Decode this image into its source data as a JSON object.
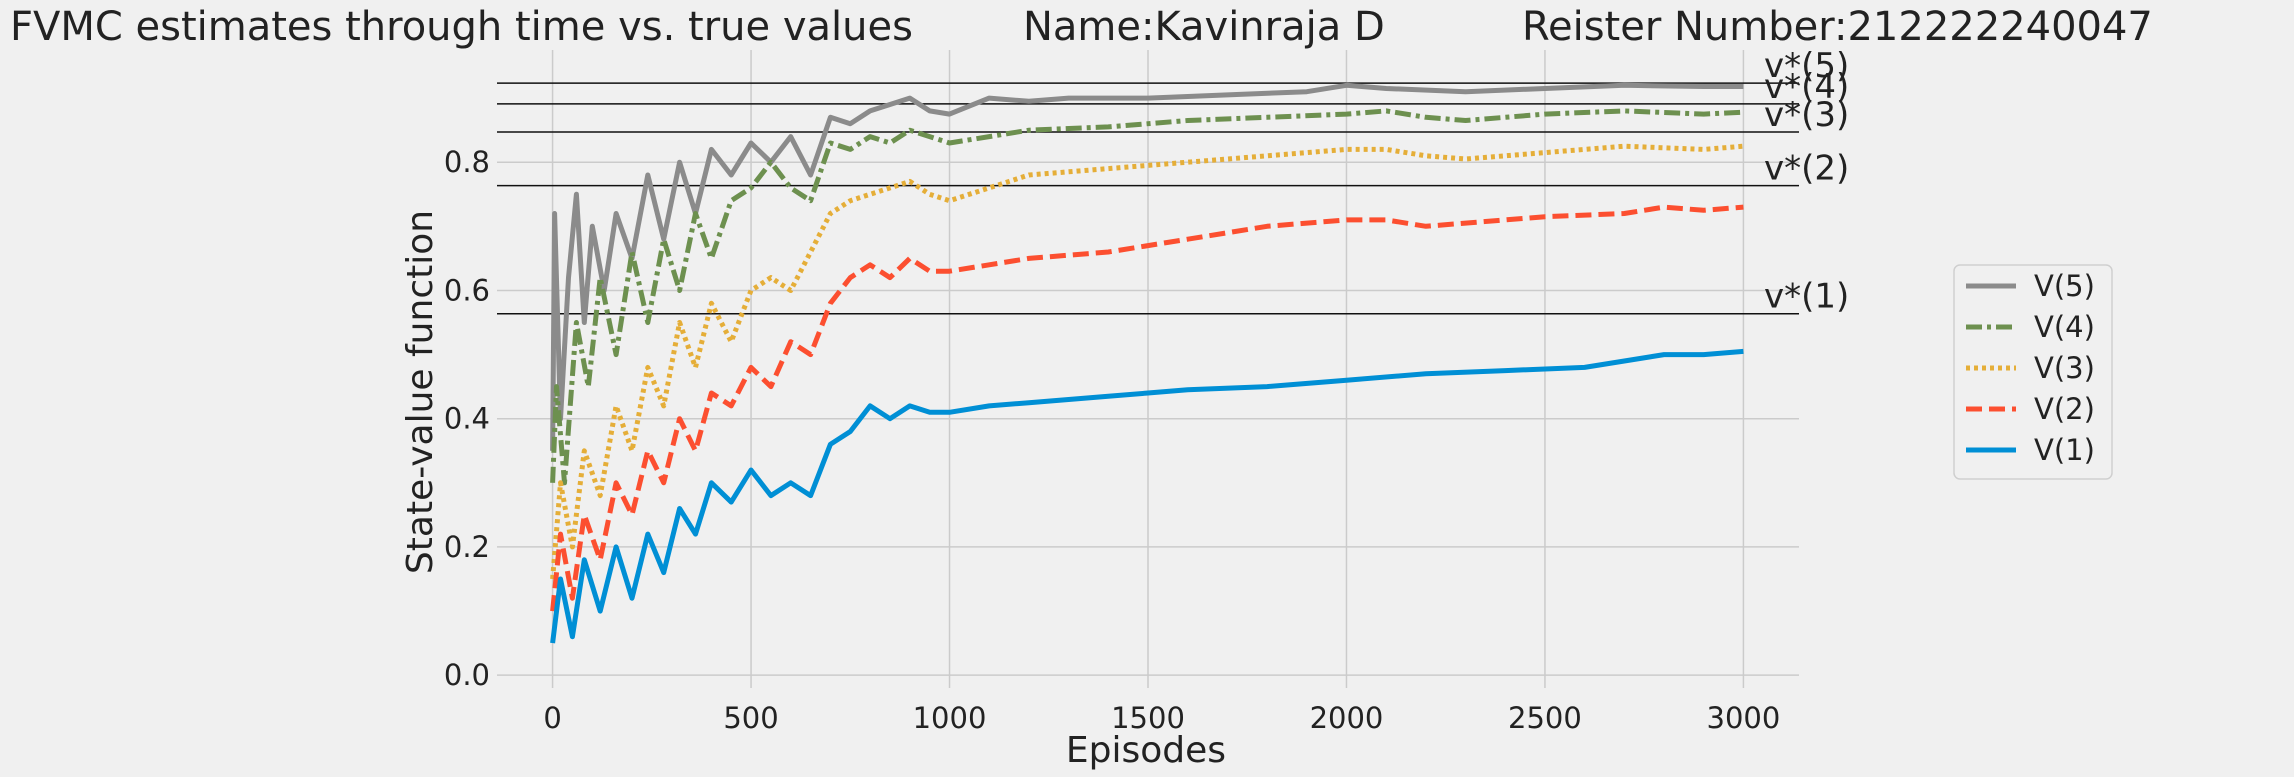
{
  "chart_data": {
    "type": "line",
    "title_parts": [
      "FVMC estimates through time vs. true values",
      "Name:Kavinraja D",
      "Reister Number:212222240047"
    ],
    "xlabel": "Episodes",
    "ylabel": "State-value function",
    "xlim": [
      -140,
      3140
    ],
    "ylim": [
      -0.02,
      0.975
    ],
    "xticks": [
      0,
      500,
      1000,
      1500,
      2000,
      2500,
      3000
    ],
    "yticks": [
      0.0,
      0.2,
      0.4,
      0.6,
      0.8
    ],
    "xtick_labels": [
      "0",
      "500",
      "1000",
      "1500",
      "2000",
      "2500",
      "3000"
    ],
    "ytick_labels": [
      "0.0",
      "0.2",
      "0.4",
      "0.6",
      "0.8"
    ],
    "grid": true,
    "legend_position": "right",
    "true_values": [
      {
        "label": "v*(1)",
        "value": 0.5637
      },
      {
        "label": "v*(2)",
        "value": 0.7634
      },
      {
        "label": "v*(3)",
        "value": 0.8472
      },
      {
        "label": "v*(4)",
        "value": 0.891
      },
      {
        "label": "v*(5)",
        "value": 0.9234
      }
    ],
    "series": [
      {
        "name": "V(5)",
        "color": "#8b8b8b",
        "dash": "solid",
        "points": [
          [
            0,
            0.35
          ],
          [
            5,
            0.72
          ],
          [
            20,
            0.4
          ],
          [
            40,
            0.62
          ],
          [
            60,
            0.75
          ],
          [
            80,
            0.55
          ],
          [
            100,
            0.7
          ],
          [
            130,
            0.6
          ],
          [
            160,
            0.72
          ],
          [
            200,
            0.65
          ],
          [
            240,
            0.78
          ],
          [
            280,
            0.68
          ],
          [
            320,
            0.8
          ],
          [
            360,
            0.72
          ],
          [
            400,
            0.82
          ],
          [
            450,
            0.78
          ],
          [
            500,
            0.83
          ],
          [
            550,
            0.8
          ],
          [
            600,
            0.84
          ],
          [
            650,
            0.78
          ],
          [
            700,
            0.87
          ],
          [
            750,
            0.86
          ],
          [
            800,
            0.88
          ],
          [
            850,
            0.89
          ],
          [
            900,
            0.9
          ],
          [
            950,
            0.88
          ],
          [
            1000,
            0.875
          ],
          [
            1100,
            0.9
          ],
          [
            1200,
            0.895
          ],
          [
            1300,
            0.9
          ],
          [
            1500,
            0.9
          ],
          [
            1700,
            0.905
          ],
          [
            1900,
            0.91
          ],
          [
            2000,
            0.92
          ],
          [
            2100,
            0.915
          ],
          [
            2300,
            0.91
          ],
          [
            2500,
            0.915
          ],
          [
            2700,
            0.92
          ],
          [
            2900,
            0.918
          ],
          [
            3000,
            0.918
          ]
        ]
      },
      {
        "name": "V(4)",
        "color": "#6d904f",
        "dash": "dashdot",
        "points": [
          [
            0,
            0.3
          ],
          [
            10,
            0.45
          ],
          [
            30,
            0.3
          ],
          [
            60,
            0.55
          ],
          [
            90,
            0.45
          ],
          [
            120,
            0.62
          ],
          [
            160,
            0.5
          ],
          [
            200,
            0.66
          ],
          [
            240,
            0.55
          ],
          [
            280,
            0.68
          ],
          [
            320,
            0.6
          ],
          [
            360,
            0.72
          ],
          [
            400,
            0.65
          ],
          [
            450,
            0.74
          ],
          [
            500,
            0.76
          ],
          [
            550,
            0.8
          ],
          [
            600,
            0.76
          ],
          [
            650,
            0.74
          ],
          [
            700,
            0.83
          ],
          [
            750,
            0.82
          ],
          [
            800,
            0.84
          ],
          [
            850,
            0.83
          ],
          [
            900,
            0.85
          ],
          [
            950,
            0.84
          ],
          [
            1000,
            0.83
          ],
          [
            1100,
            0.84
          ],
          [
            1200,
            0.85
          ],
          [
            1400,
            0.855
          ],
          [
            1600,
            0.865
          ],
          [
            1800,
            0.87
          ],
          [
            2000,
            0.875
          ],
          [
            2100,
            0.88
          ],
          [
            2200,
            0.87
          ],
          [
            2300,
            0.865
          ],
          [
            2500,
            0.875
          ],
          [
            2700,
            0.88
          ],
          [
            2900,
            0.875
          ],
          [
            3000,
            0.878
          ]
        ]
      },
      {
        "name": "V(3)",
        "color": "#e5ae38",
        "dash": "dotted",
        "points": [
          [
            0,
            0.15
          ],
          [
            20,
            0.3
          ],
          [
            50,
            0.2
          ],
          [
            80,
            0.35
          ],
          [
            120,
            0.28
          ],
          [
            160,
            0.42
          ],
          [
            200,
            0.35
          ],
          [
            240,
            0.48
          ],
          [
            280,
            0.42
          ],
          [
            320,
            0.55
          ],
          [
            360,
            0.48
          ],
          [
            400,
            0.58
          ],
          [
            450,
            0.52
          ],
          [
            500,
            0.6
          ],
          [
            550,
            0.62
          ],
          [
            600,
            0.6
          ],
          [
            650,
            0.66
          ],
          [
            700,
            0.72
          ],
          [
            750,
            0.74
          ],
          [
            800,
            0.75
          ],
          [
            850,
            0.76
          ],
          [
            900,
            0.77
          ],
          [
            950,
            0.75
          ],
          [
            1000,
            0.74
          ],
          [
            1100,
            0.76
          ],
          [
            1200,
            0.78
          ],
          [
            1400,
            0.79
          ],
          [
            1600,
            0.8
          ],
          [
            1800,
            0.81
          ],
          [
            2000,
            0.82
          ],
          [
            2100,
            0.82
          ],
          [
            2200,
            0.81
          ],
          [
            2300,
            0.805
          ],
          [
            2500,
            0.815
          ],
          [
            2700,
            0.825
          ],
          [
            2900,
            0.82
          ],
          [
            3000,
            0.825
          ]
        ]
      },
      {
        "name": "V(2)",
        "color": "#fc4f30",
        "dash": "dashed",
        "points": [
          [
            0,
            0.1
          ],
          [
            20,
            0.22
          ],
          [
            50,
            0.12
          ],
          [
            80,
            0.25
          ],
          [
            120,
            0.18
          ],
          [
            160,
            0.3
          ],
          [
            200,
            0.25
          ],
          [
            240,
            0.35
          ],
          [
            280,
            0.3
          ],
          [
            320,
            0.4
          ],
          [
            360,
            0.35
          ],
          [
            400,
            0.44
          ],
          [
            450,
            0.42
          ],
          [
            500,
            0.48
          ],
          [
            550,
            0.45
          ],
          [
            600,
            0.52
          ],
          [
            650,
            0.5
          ],
          [
            700,
            0.58
          ],
          [
            750,
            0.62
          ],
          [
            800,
            0.64
          ],
          [
            850,
            0.62
          ],
          [
            900,
            0.65
          ],
          [
            950,
            0.63
          ],
          [
            1000,
            0.63
          ],
          [
            1100,
            0.64
          ],
          [
            1200,
            0.65
          ],
          [
            1400,
            0.66
          ],
          [
            1600,
            0.68
          ],
          [
            1800,
            0.7
          ],
          [
            2000,
            0.71
          ],
          [
            2100,
            0.71
          ],
          [
            2200,
            0.7
          ],
          [
            2300,
            0.705
          ],
          [
            2500,
            0.715
          ],
          [
            2700,
            0.72
          ],
          [
            2800,
            0.73
          ],
          [
            2900,
            0.725
          ],
          [
            3000,
            0.73
          ]
        ]
      },
      {
        "name": "V(1)",
        "color": "#008fd5",
        "dash": "solid",
        "points": [
          [
            0,
            0.05
          ],
          [
            20,
            0.15
          ],
          [
            50,
            0.06
          ],
          [
            80,
            0.18
          ],
          [
            120,
            0.1
          ],
          [
            160,
            0.2
          ],
          [
            200,
            0.12
          ],
          [
            240,
            0.22
          ],
          [
            280,
            0.16
          ],
          [
            320,
            0.26
          ],
          [
            360,
            0.22
          ],
          [
            400,
            0.3
          ],
          [
            450,
            0.27
          ],
          [
            500,
            0.32
          ],
          [
            550,
            0.28
          ],
          [
            600,
            0.3
          ],
          [
            650,
            0.28
          ],
          [
            700,
            0.36
          ],
          [
            750,
            0.38
          ],
          [
            800,
            0.42
          ],
          [
            850,
            0.4
          ],
          [
            900,
            0.42
          ],
          [
            950,
            0.41
          ],
          [
            1000,
            0.41
          ],
          [
            1100,
            0.42
          ],
          [
            1200,
            0.425
          ],
          [
            1400,
            0.435
          ],
          [
            1500,
            0.44
          ],
          [
            1600,
            0.445
          ],
          [
            1800,
            0.45
          ],
          [
            2000,
            0.46
          ],
          [
            2200,
            0.47
          ],
          [
            2400,
            0.475
          ],
          [
            2600,
            0.48
          ],
          [
            2800,
            0.5
          ],
          [
            2900,
            0.5
          ],
          [
            3000,
            0.505
          ]
        ]
      }
    ]
  }
}
